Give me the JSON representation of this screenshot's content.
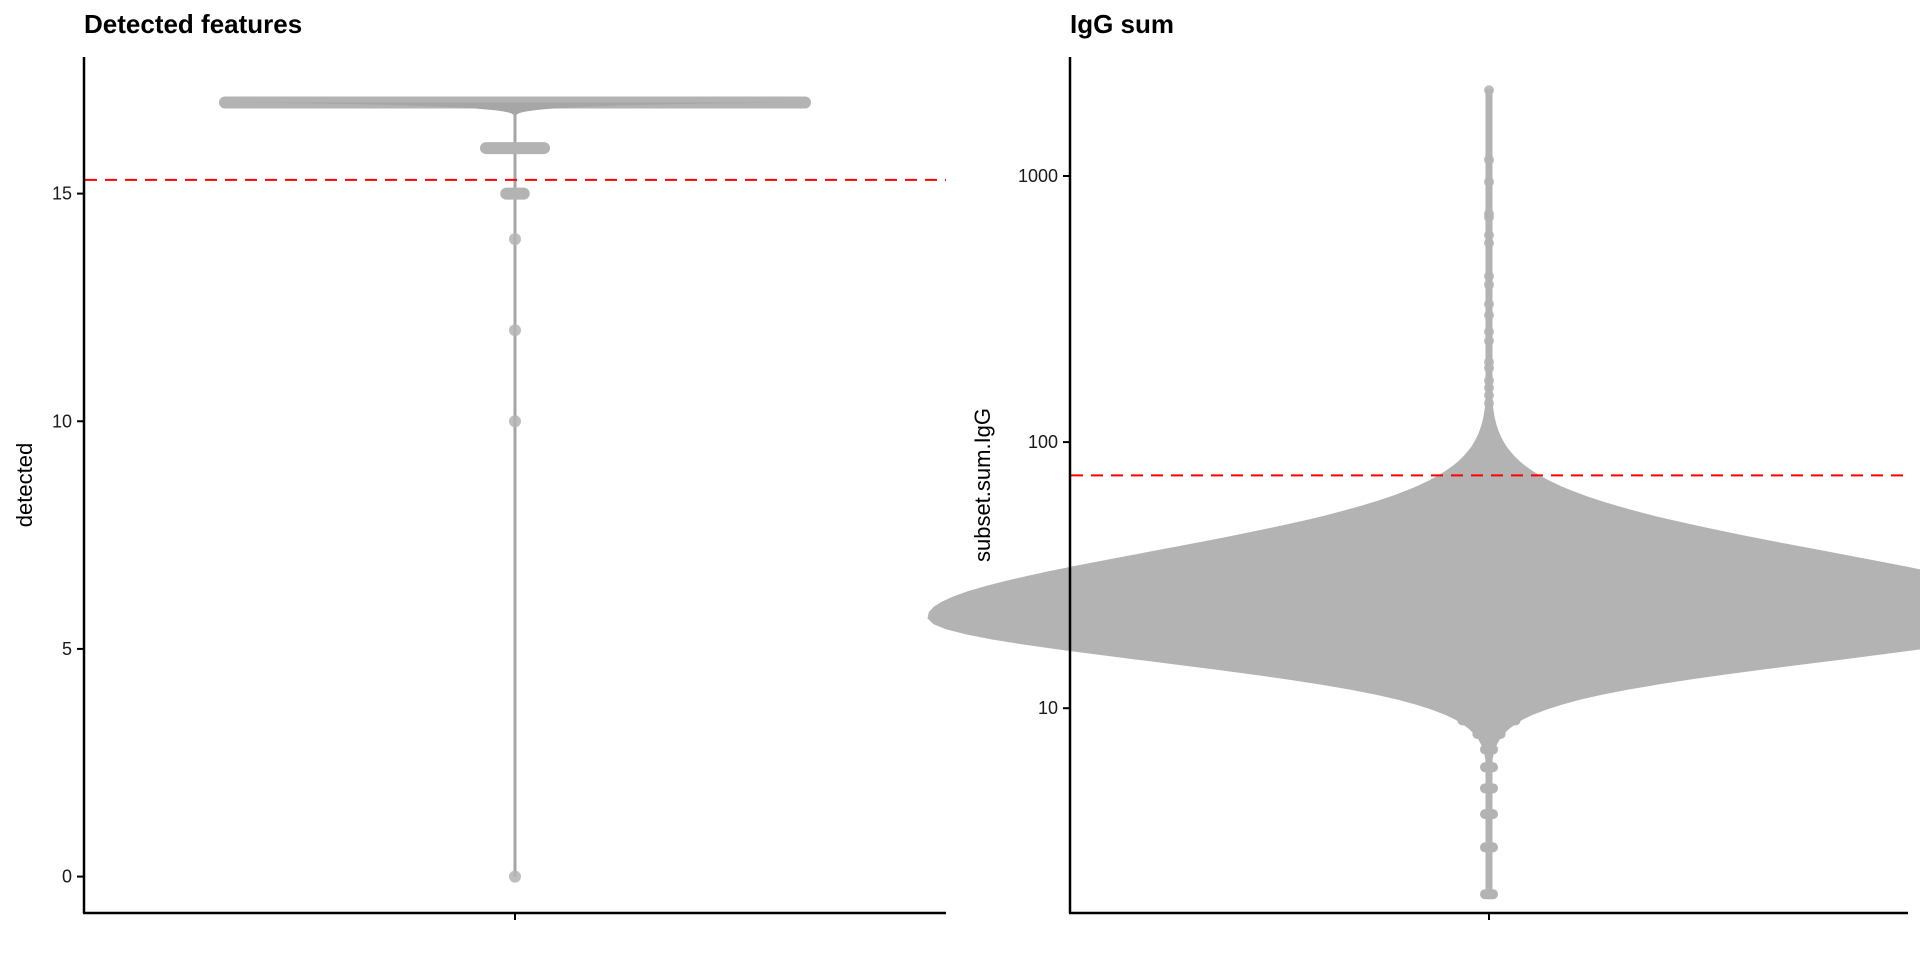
{
  "chart_data": [
    {
      "type": "scatter",
      "subtype": "violin-beeswarm",
      "title": "Detected features",
      "xlabel": "",
      "ylabel": "detected",
      "scale": "linear",
      "ylim": [
        -0.8,
        18
      ],
      "yticks": [
        0,
        5,
        10,
        15
      ],
      "ytick_labels": [
        "0",
        "5",
        "10",
        "15"
      ],
      "threshold": 15.3,
      "threshold_color": "#ff0000",
      "point_color": "#b3b3b3",
      "violin_color": "#a6a6a6",
      "discrete_values": [
        17,
        16,
        15,
        14,
        12,
        10,
        0
      ],
      "relative_density": [
        1.0,
        0.1,
        0.03,
        0.01,
        0.01,
        0.01,
        0.01
      ]
    },
    {
      "type": "scatter",
      "subtype": "violin-beeswarm",
      "title": "IgG sum",
      "xlabel": "",
      "ylabel": "subset.sum.IgG",
      "scale": "log10",
      "ylim": [
        1.7,
        2800
      ],
      "yticks": [
        10,
        100,
        1000
      ],
      "ytick_labels": [
        "10",
        "100",
        "1000"
      ],
      "threshold": 75,
      "threshold_color": "#ff0000",
      "point_color": "#b3b3b3",
      "violin_color": "#a6a6a6",
      "min_value": 2,
      "max_value": 2100,
      "mode_value": 22,
      "outliers": [
        2100,
        1150,
        950,
        720,
        700,
        600,
        560,
        420,
        390,
        330,
        300,
        260,
        240,
        200,
        190,
        170,
        160,
        150,
        140
      ]
    }
  ]
}
